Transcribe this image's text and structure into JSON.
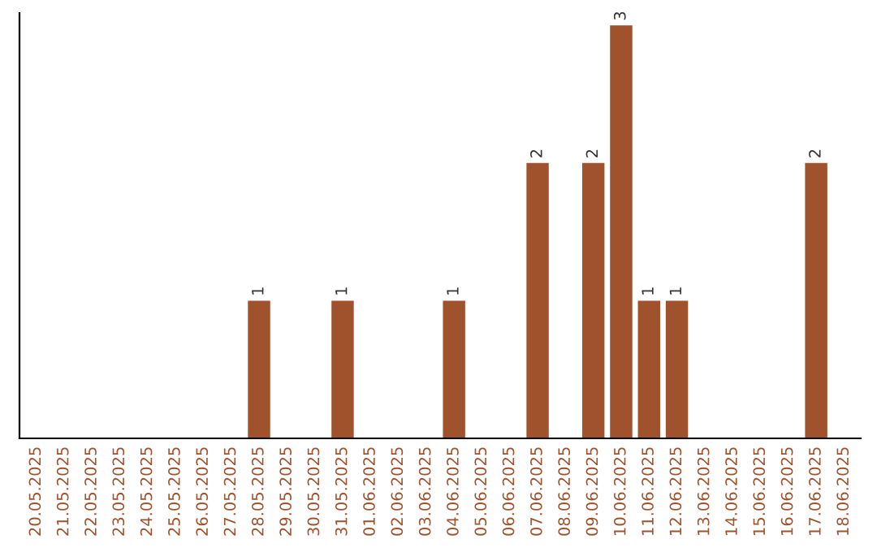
{
  "chart_data": {
    "type": "bar",
    "categories": [
      "20.05.2025",
      "21.05.2025",
      "22.05.2025",
      "23.05.2025",
      "24.05.2025",
      "25.05.2025",
      "26.05.2025",
      "27.05.2025",
      "28.05.2025",
      "29.05.2025",
      "30.05.2025",
      "31.05.2025",
      "01.06.2025",
      "02.06.2025",
      "03.06.2025",
      "04.06.2025",
      "05.06.2025",
      "06.06.2025",
      "07.06.2025",
      "08.06.2025",
      "09.06.2025",
      "10.06.2025",
      "11.06.2025",
      "12.06.2025",
      "13.06.2025",
      "14.06.2025",
      "15.06.2025",
      "16.06.2025",
      "17.06.2025",
      "18.06.2025"
    ],
    "values": [
      0,
      0,
      0,
      0,
      0,
      0,
      0,
      0,
      1,
      0,
      0,
      1,
      0,
      0,
      0,
      1,
      0,
      0,
      2,
      0,
      2,
      3,
      1,
      1,
      0,
      0,
      0,
      0,
      2,
      0
    ],
    "value_labels": [
      null,
      null,
      null,
      null,
      null,
      null,
      null,
      null,
      "1",
      null,
      null,
      "1",
      null,
      null,
      null,
      "1",
      null,
      null,
      "2",
      null,
      "2",
      "3",
      "1",
      "1",
      null,
      null,
      null,
      null,
      "2",
      null
    ],
    "color": "#a0522d",
    "tick_labels": "x",
    "grid": false,
    "legend": false
  }
}
